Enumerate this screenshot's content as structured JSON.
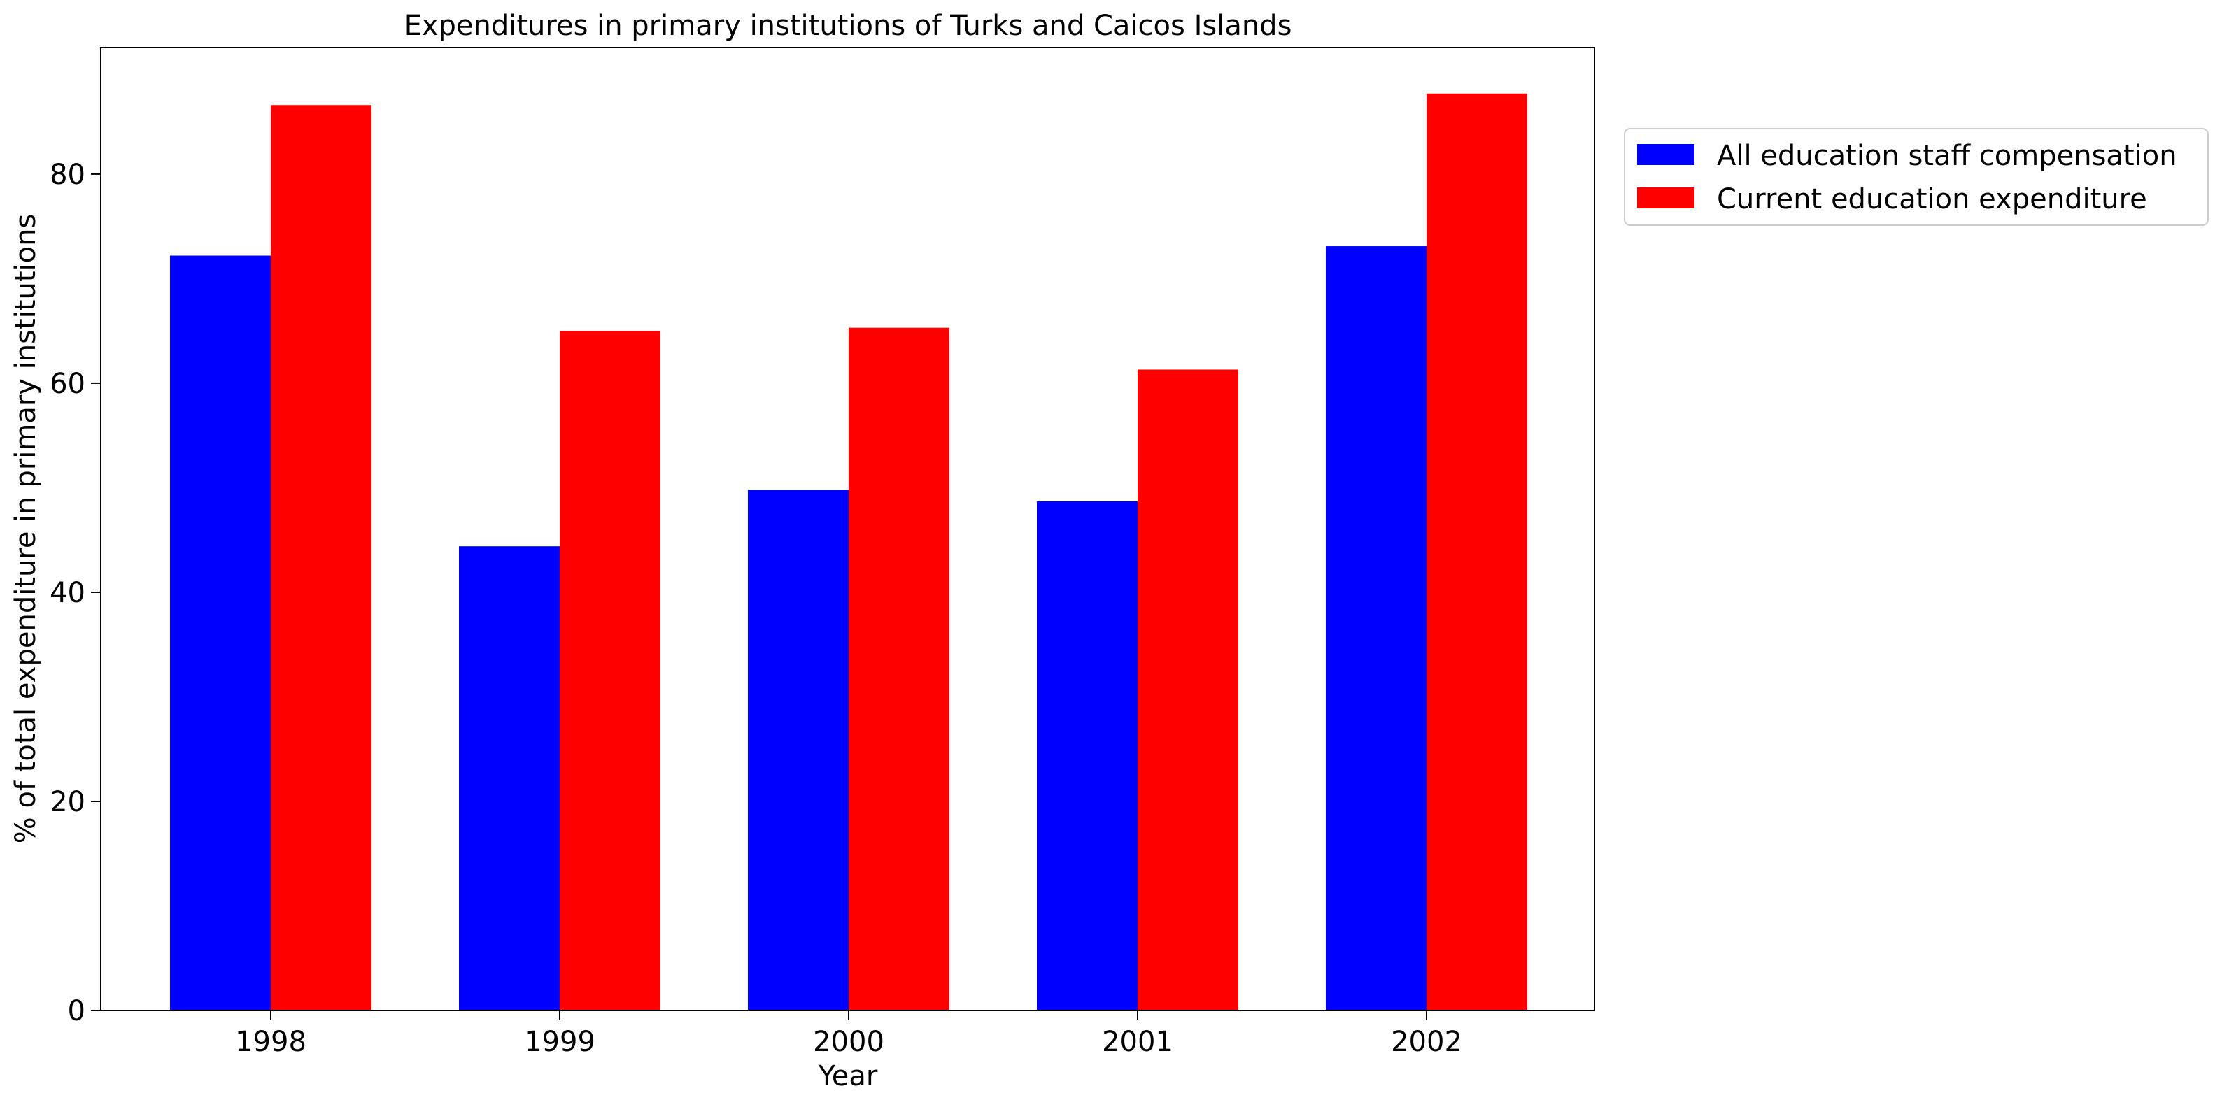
{
  "chart_data": {
    "type": "bar",
    "title": "Expenditures in primary institutions of Turks and Caicos Islands",
    "xlabel": "Year",
    "ylabel": "% of total expenditure in primary institutions",
    "categories": [
      "1998",
      "1999",
      "2000",
      "2001",
      "2002"
    ],
    "series": [
      {
        "name": "All education staff compensation",
        "color": "#0000ff",
        "values": [
          72.2,
          44.4,
          49.8,
          48.7,
          73.1
        ]
      },
      {
        "name": "Current education expenditure",
        "color": "#ff0000",
        "values": [
          86.6,
          65.0,
          65.3,
          61.3,
          87.7
        ]
      }
    ],
    "ylim": [
      0,
      92.1
    ],
    "yticks": [
      0,
      20,
      40,
      60,
      80
    ],
    "grid": false,
    "legend_position": "outside-top-right"
  }
}
